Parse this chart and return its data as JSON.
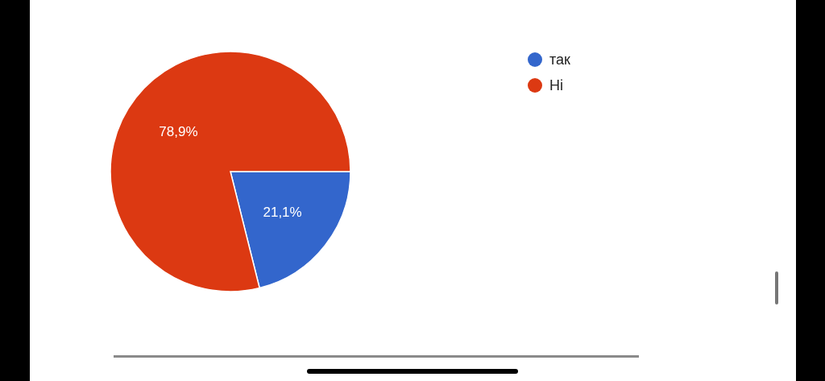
{
  "chart_data": {
    "type": "pie",
    "categories": [
      "так",
      "Ні"
    ],
    "values": [
      21.1,
      78.9
    ],
    "colors": [
      "#3366cc",
      "#dc3912"
    ],
    "value_labels": [
      "21,1%",
      "78,9%"
    ],
    "legend": "top right"
  }
}
